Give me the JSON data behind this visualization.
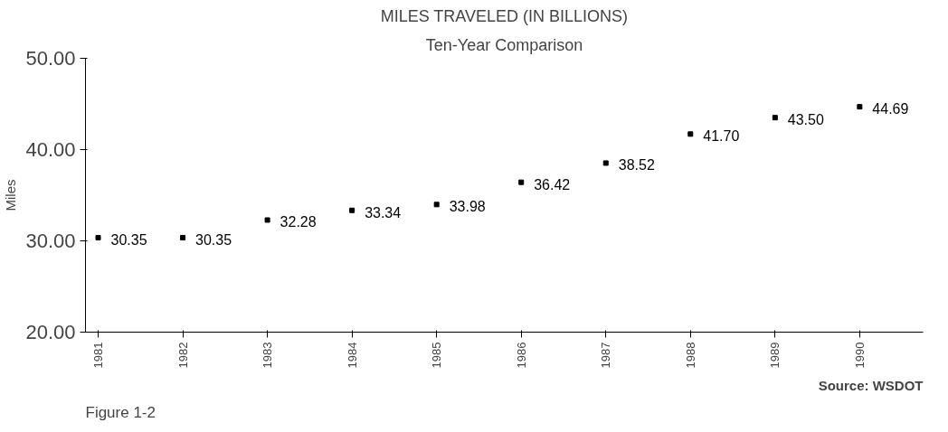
{
  "chart_data": {
    "type": "scatter",
    "title": "MILES TRAVELED (IN BILLIONS)",
    "subtitle": "Ten-Year Comparison",
    "ylabel": "Miles",
    "categories": [
      "1981",
      "1982",
      "1983",
      "1984",
      "1985",
      "1986",
      "1987",
      "1988",
      "1989",
      "1990"
    ],
    "values": [
      30.35,
      30.35,
      32.28,
      33.34,
      33.98,
      36.42,
      38.52,
      41.7,
      43.5,
      44.69
    ],
    "color": "#000000",
    "ylim": [
      20,
      50
    ],
    "yticks": [
      {
        "value": 20,
        "label": "20.00"
      },
      {
        "value": 30,
        "label": "30.00"
      },
      {
        "value": 40,
        "label": "40.00"
      },
      {
        "value": 50,
        "label": "50.00"
      }
    ],
    "value_labels": [
      "30.35",
      "30.35",
      "32.28",
      "33.34",
      "33.98",
      "36.42",
      "38.52",
      "41.70",
      "43.50",
      "44.69"
    ],
    "grid": false,
    "annotations": [
      "Figure 1-2",
      "Source: WSDOT"
    ]
  }
}
